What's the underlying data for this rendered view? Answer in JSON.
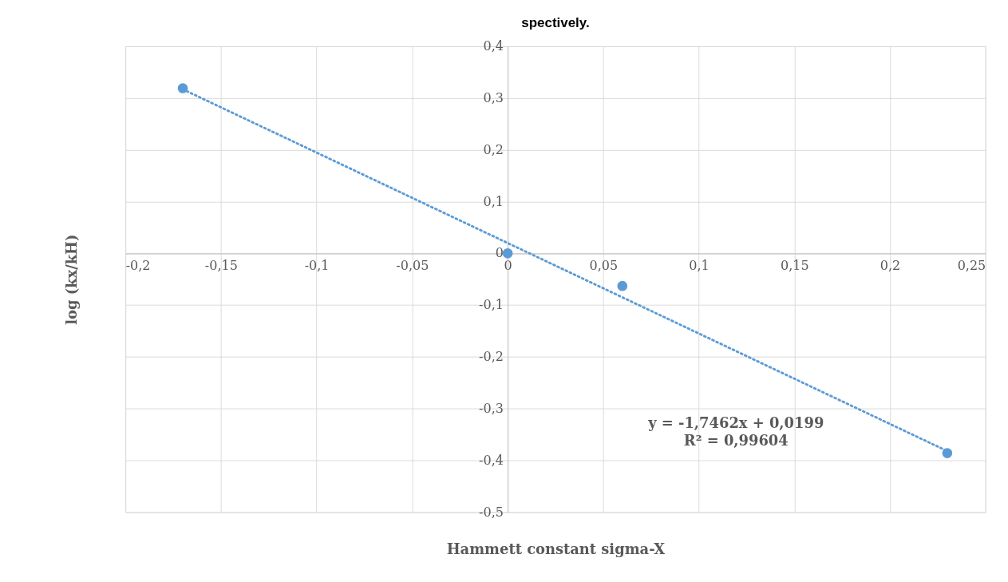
{
  "chart_data": {
    "type": "scatter",
    "title": "spectively.",
    "xlabel": "Hammett constant sigma-X",
    "ylabel": "log (kx/kH)",
    "series": [
      {
        "color": "#5b9bd5",
        "x": [
          -0.17,
          0,
          0.06,
          0.23
        ],
        "values": [
          0.319,
          0,
          -0.063,
          -0.386
        ],
        "marker": "circle"
      },
      {
        "type": "line",
        "color": "#5b9bd5",
        "x": [
          -0.17,
          0.23
        ],
        "values": [
          0.317,
          -0.382
        ],
        "line_style": "dotted"
      }
    ],
    "xlim": [
      -0.2,
      0.25
    ],
    "xticks": [
      {
        "value": -0.2,
        "label": "-0,2"
      },
      {
        "value": -0.15,
        "label": "-0,15"
      },
      {
        "value": -0.1,
        "label": "-0,1"
      },
      {
        "value": -0.05,
        "label": "-0,05"
      },
      0,
      {
        "value": 0.05,
        "label": "0,05"
      },
      {
        "value": 0.1,
        "label": "0,1"
      },
      {
        "value": 0.15,
        "label": "0,15"
      },
      {
        "value": 0.2,
        "label": "0,2"
      },
      {
        "value": 0.25,
        "label": "0,25"
      }
    ],
    "ylim": [
      -0.5,
      0.4
    ],
    "yticks": [
      {
        "value": -0.5,
        "label": "-0,5"
      },
      {
        "value": -0.4,
        "label": "-0,4"
      },
      {
        "value": -0.3,
        "label": "-0,3"
      },
      {
        "value": -0.2,
        "label": "-0,2"
      },
      {
        "value": -0.1,
        "label": "-0,1"
      },
      0,
      {
        "value": 0.1,
        "label": "0,1"
      },
      {
        "value": 0.2,
        "label": "0,2"
      },
      {
        "value": 0.3,
        "label": "0,3"
      },
      {
        "value": 0.4,
        "label": "0,4"
      }
    ],
    "annotations": [
      "y = -1,7462x + 0,0199",
      "R² = 0,99604"
    ],
    "grid": true
  }
}
